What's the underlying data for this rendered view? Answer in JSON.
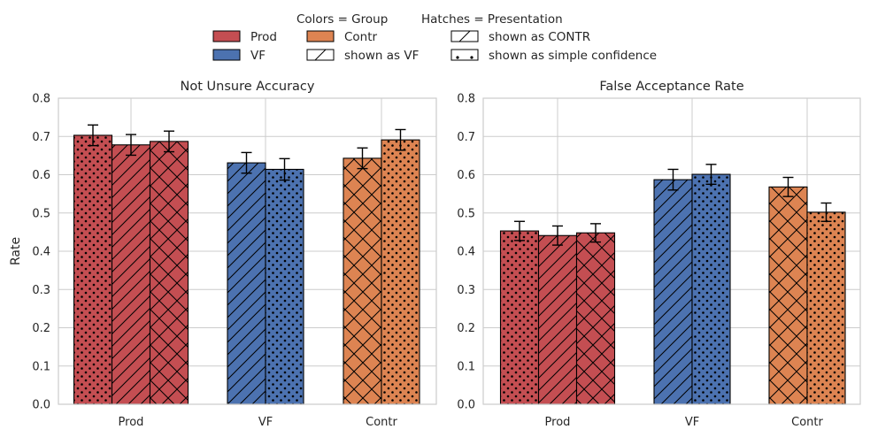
{
  "legend": {
    "colors_title": "Colors = Group",
    "hatches_title": "Hatches = Presentation",
    "entries": [
      {
        "label": "Prod",
        "fill": "#c44e52",
        "hatch": "none"
      },
      {
        "label": "VF",
        "fill": "#4c72b0",
        "hatch": "none"
      },
      {
        "label": "Contr",
        "fill": "#dd8452",
        "hatch": "none"
      },
      {
        "label": "shown as VF",
        "fill": "#ffffff",
        "hatch": "diag"
      },
      {
        "label": "shown as CONTR",
        "fill": "#ffffff",
        "hatch": "cross"
      },
      {
        "label": "shown as simple confidence",
        "fill": "#ffffff",
        "hatch": "dots"
      }
    ]
  },
  "colors": {
    "Prod": "#c44e52",
    "VF": "#4c72b0",
    "Contr": "#dd8452",
    "grid": "#cccccc"
  },
  "chart_data": [
    {
      "type": "bar",
      "title": "Not Unsure Accuracy",
      "ylabel": "Rate",
      "ylim": [
        0,
        0.8
      ],
      "yticks": [
        "0.0",
        "0.1",
        "0.2",
        "0.3",
        "0.4",
        "0.5",
        "0.6",
        "0.7",
        "0.8"
      ],
      "grid": true,
      "categories": [
        "Prod",
        "VF",
        "Contr"
      ],
      "groups": [
        {
          "category": "Prod",
          "bars": [
            {
              "presentation": "shown as simple confidence",
              "hatch": "dots",
              "value": 0.703,
              "err": 0.027
            },
            {
              "presentation": "shown as VF",
              "hatch": "diag",
              "value": 0.678,
              "err": 0.027
            },
            {
              "presentation": "shown as CONTR",
              "hatch": "cross",
              "value": 0.687,
              "err": 0.027
            }
          ]
        },
        {
          "category": "VF",
          "bars": [
            {
              "presentation": "shown as VF",
              "hatch": "diag",
              "value": 0.631,
              "err": 0.027
            },
            {
              "presentation": "shown as simple confidence",
              "hatch": "dots",
              "value": 0.614,
              "err": 0.028
            }
          ]
        },
        {
          "category": "Contr",
          "bars": [
            {
              "presentation": "shown as CONTR",
              "hatch": "cross",
              "value": 0.643,
              "err": 0.027
            },
            {
              "presentation": "shown as simple confidence",
              "hatch": "dots",
              "value": 0.691,
              "err": 0.027
            }
          ]
        }
      ]
    },
    {
      "type": "bar",
      "title": "False Acceptance Rate",
      "ylabel": "",
      "ylim": [
        0,
        0.8
      ],
      "yticks": [
        "0.0",
        "0.1",
        "0.2",
        "0.3",
        "0.4",
        "0.5",
        "0.6",
        "0.7",
        "0.8"
      ],
      "grid": true,
      "categories": [
        "Prod",
        "VF",
        "Contr"
      ],
      "groups": [
        {
          "category": "Prod",
          "bars": [
            {
              "presentation": "shown as simple confidence",
              "hatch": "dots",
              "value": 0.453,
              "err": 0.025
            },
            {
              "presentation": "shown as VF",
              "hatch": "diag",
              "value": 0.441,
              "err": 0.025
            },
            {
              "presentation": "shown as CONTR",
              "hatch": "cross",
              "value": 0.448,
              "err": 0.024
            }
          ]
        },
        {
          "category": "VF",
          "bars": [
            {
              "presentation": "shown as VF",
              "hatch": "diag",
              "value": 0.587,
              "err": 0.027
            },
            {
              "presentation": "shown as simple confidence",
              "hatch": "dots",
              "value": 0.601,
              "err": 0.026
            }
          ]
        },
        {
          "category": "Contr",
          "bars": [
            {
              "presentation": "shown as CONTR",
              "hatch": "cross",
              "value": 0.568,
              "err": 0.025
            },
            {
              "presentation": "shown as simple confidence",
              "hatch": "dots",
              "value": 0.502,
              "err": 0.024
            }
          ]
        }
      ]
    }
  ]
}
